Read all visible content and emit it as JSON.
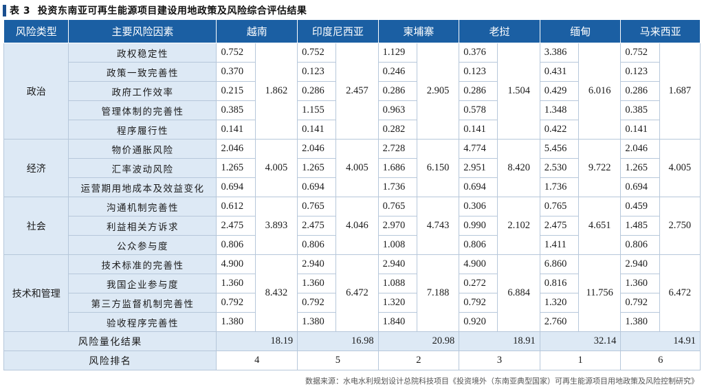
{
  "title": {
    "label": "表 3",
    "text": "投资东南亚可再生能源项目建设用地政策及风险综合评估结果"
  },
  "headers": {
    "category": "风险类型",
    "factor": "主要风险因素",
    "countries": [
      "越南",
      "印度尼西亚",
      "柬埔寨",
      "老挝",
      "缅甸",
      "马来西亚"
    ]
  },
  "groups": [
    {
      "name": "政治",
      "factors": [
        {
          "name": "政权稳定性",
          "values": [
            "0.752",
            "0.752",
            "1.129",
            "0.376",
            "3.386",
            "0.752"
          ]
        },
        {
          "name": "政策一致完善性",
          "values": [
            "0.370",
            "0.123",
            "0.246",
            "0.123",
            "0.431",
            "0.123"
          ]
        },
        {
          "name": "政府工作效率",
          "values": [
            "0.215",
            "0.286",
            "0.286",
            "0.286",
            "0.429",
            "0.286"
          ]
        },
        {
          "name": "管理体制的完善性",
          "values": [
            "0.385",
            "1.155",
            "0.963",
            "0.578",
            "1.348",
            "0.385"
          ]
        },
        {
          "name": "程序履行性",
          "values": [
            "0.141",
            "0.141",
            "0.282",
            "0.141",
            "0.422",
            "0.141"
          ]
        }
      ],
      "totals": [
        "1.862",
        "2.457",
        "2.905",
        "1.504",
        "6.016",
        "1.687"
      ]
    },
    {
      "name": "经济",
      "factors": [
        {
          "name": "物价通胀风险",
          "values": [
            "2.046",
            "2.046",
            "2.728",
            "4.774",
            "5.456",
            "2.046"
          ]
        },
        {
          "name": "汇率波动风险",
          "values": [
            "1.265",
            "1.265",
            "1.686",
            "2.951",
            "2.530",
            "1.265"
          ]
        },
        {
          "name": "运营期用地成本及效益变化",
          "values": [
            "0.694",
            "0.694",
            "1.736",
            "0.694",
            "1.736",
            "0.694"
          ]
        }
      ],
      "totals": [
        "4.005",
        "4.005",
        "6.150",
        "8.420",
        "9.722",
        "4.005"
      ]
    },
    {
      "name": "社会",
      "factors": [
        {
          "name": "沟通机制完善性",
          "values": [
            "0.612",
            "0.765",
            "0.765",
            "0.306",
            "0.765",
            "0.459"
          ]
        },
        {
          "name": "利益相关方诉求",
          "values": [
            "2.475",
            "2.475",
            "2.970",
            "0.990",
            "2.475",
            "1.485"
          ]
        },
        {
          "name": "公众参与度",
          "values": [
            "0.806",
            "0.806",
            "1.008",
            "0.806",
            "1.411",
            "0.806"
          ]
        }
      ],
      "totals": [
        "3.893",
        "4.046",
        "4.743",
        "2.102",
        "4.651",
        "2.750"
      ]
    },
    {
      "name": "技术和管理",
      "factors": [
        {
          "name": "技术标准的完善性",
          "values": [
            "4.900",
            "2.940",
            "2.940",
            "4.900",
            "6.860",
            "2.940"
          ]
        },
        {
          "name": "我国企业参与度",
          "values": [
            "1.360",
            "1.360",
            "1.088",
            "0.272",
            "0.816",
            "1.360"
          ]
        },
        {
          "name": "第三方监督机制完善性",
          "values": [
            "0.792",
            "0.792",
            "1.320",
            "0.792",
            "1.320",
            "0.792"
          ]
        },
        {
          "name": "验收程序完善性",
          "values": [
            "1.380",
            "1.380",
            "1.840",
            "0.920",
            "2.760",
            "1.380"
          ]
        }
      ],
      "totals": [
        "8.432",
        "6.472",
        "7.188",
        "6.884",
        "11.756",
        "6.472"
      ]
    }
  ],
  "summary": {
    "label": "风险量化结果",
    "values": [
      "18.19",
      "16.98",
      "20.98",
      "18.91",
      "32.14",
      "14.91"
    ]
  },
  "ranking": {
    "label": "风险排名",
    "values": [
      "4",
      "5",
      "2",
      "3",
      "1",
      "6"
    ]
  },
  "footnote": "数据来源：水电水利规划设计总院科技项目《投资境外（东南亚典型国家）可再生能源项目用地政策及风险控制研究》",
  "colors": {
    "header_bg": "#1b5fa3",
    "label_bg": "#dde9f5",
    "title_mark": "#1b4f8f"
  }
}
